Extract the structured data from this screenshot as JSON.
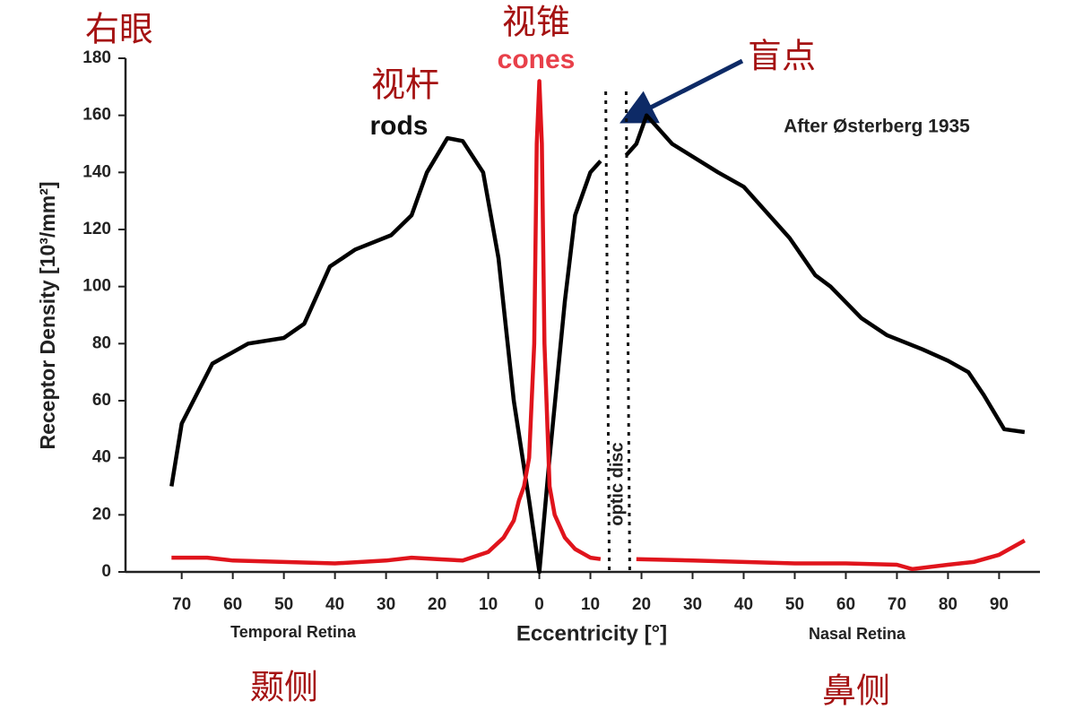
{
  "chart_data": {
    "type": "line",
    "x_label": "Eccentricity [°]",
    "y_label": "Receptor Density [10³/mm²]",
    "xlim": [
      -81,
      98
    ],
    "ylim": [
      0,
      180
    ],
    "yticks": [
      0,
      20,
      40,
      60,
      80,
      100,
      120,
      140,
      160,
      180
    ],
    "xticks": [
      {
        "value": -70,
        "label": "70"
      },
      {
        "value": -60,
        "label": "60"
      },
      {
        "value": -50,
        "label": "50"
      },
      {
        "value": -40,
        "label": "40"
      },
      {
        "value": -30,
        "label": "30"
      },
      {
        "value": -20,
        "label": "20"
      },
      {
        "value": -10,
        "label": "10"
      },
      0,
      10,
      20,
      30,
      40,
      50,
      60,
      70,
      80,
      90
    ],
    "series": [
      {
        "name": "rods",
        "color": "#000000",
        "x": [
          -72,
          -70,
          -64,
          -57,
          -50,
          -46,
          -41,
          -36,
          -29,
          -25,
          -22,
          -18,
          -15,
          -11,
          -8,
          -5,
          -2,
          0,
          2,
          5,
          7,
          10,
          12,
          15,
          17,
          19,
          21,
          23,
          26,
          35,
          40,
          45,
          49,
          54,
          57,
          63,
          68,
          75,
          80,
          84,
          87,
          91,
          95
        ],
        "values": [
          30,
          52,
          73,
          80,
          82,
          87,
          107,
          113,
          118,
          125,
          140,
          152,
          151,
          140,
          110,
          60,
          25,
          0,
          40,
          95,
          125,
          140,
          144,
          null,
          146,
          150,
          160,
          156,
          150,
          140,
          135,
          125,
          117,
          104,
          100,
          89,
          83,
          78,
          74,
          70,
          62,
          50,
          49
        ]
      },
      {
        "name": "cones",
        "color": "#e0141c",
        "x": [
          -72,
          -65,
          -60,
          -50,
          -40,
          -30,
          -25,
          -20,
          -15,
          -10,
          -7,
          -5,
          -4,
          -3,
          -2,
          -1,
          -0.5,
          0,
          0.5,
          1,
          2,
          3,
          5,
          7,
          10,
          12,
          15,
          19,
          30,
          40,
          50,
          60,
          70,
          73,
          80,
          85,
          90,
          95
        ],
        "values": [
          5,
          5,
          4,
          3.5,
          3,
          4,
          5,
          4.5,
          4,
          7,
          12,
          18,
          25,
          30,
          40,
          80,
          150,
          172,
          150,
          80,
          30,
          20,
          12,
          8,
          5,
          4.5,
          null,
          4.5,
          4,
          3.5,
          3,
          3,
          2.5,
          1,
          2.5,
          3.5,
          6,
          11
        ]
      }
    ],
    "optic_disc": {
      "x": [
        13,
        17
      ],
      "label": "optic disc"
    },
    "annotations": [
      "右眼",
      "视锥",
      "cones",
      "视杆",
      "rods",
      "盲点",
      "After Østerberg 1935",
      "Temporal Retina",
      "Nasal Retina",
      "颞侧",
      "鼻侧"
    ]
  }
}
